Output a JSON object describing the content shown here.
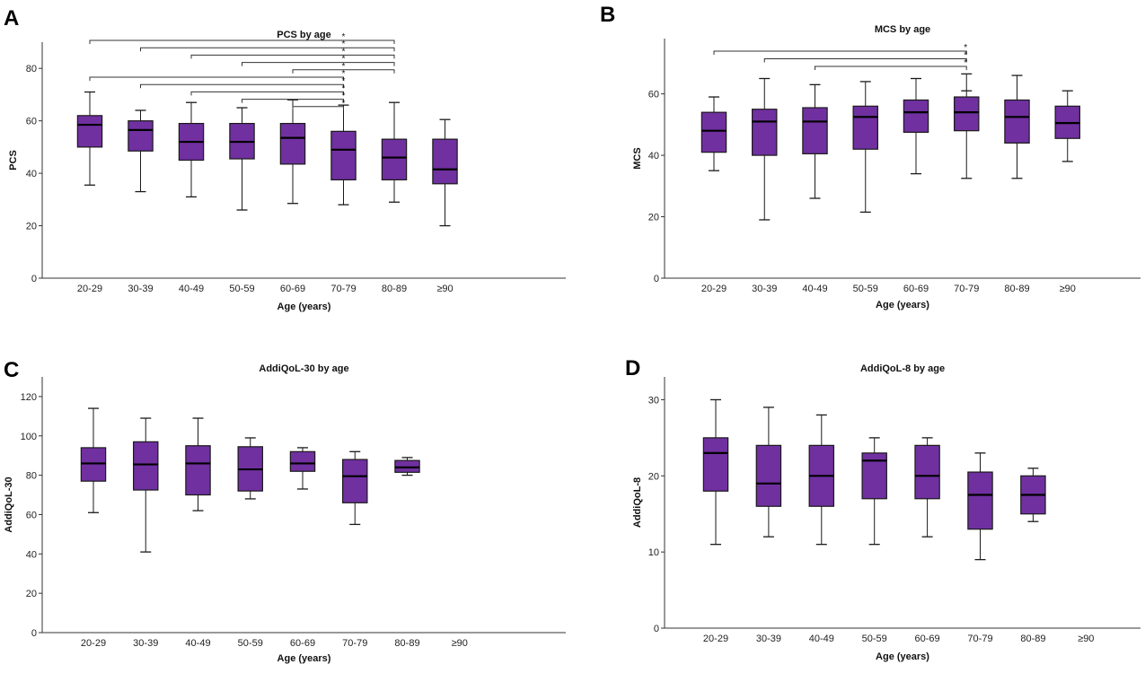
{
  "box_fill": "#7030A0",
  "box_stroke": "#1a1a1a",
  "chart_data": [
    {
      "panel_label": "A",
      "type": "box",
      "title": "PCS by age",
      "xlabel": "Age (years)",
      "ylabel": "PCS",
      "ylim": [
        0,
        90
      ],
      "yticks": [
        0,
        20,
        40,
        60,
        80
      ],
      "categories": [
        "20-29",
        "30-39",
        "40-49",
        "50-59",
        "60-69",
        "70-79",
        "80-89",
        "≥90"
      ],
      "boxes": [
        {
          "min": 35.5,
          "q1": 50,
          "median": 58.5,
          "q3": 62,
          "max": 71
        },
        {
          "min": 33,
          "q1": 48.5,
          "median": 56.5,
          "q3": 60,
          "max": 64
        },
        {
          "min": 31,
          "q1": 45,
          "median": 52,
          "q3": 59,
          "max": 67
        },
        {
          "min": 26,
          "q1": 45.5,
          "median": 52,
          "q3": 59,
          "max": 65
        },
        {
          "min": 28.5,
          "q1": 43.5,
          "median": 53.5,
          "q3": 59,
          "max": 68
        },
        {
          "min": 28,
          "q1": 37.5,
          "median": 49,
          "q3": 56,
          "max": 66
        },
        {
          "min": 29,
          "q1": 37.5,
          "median": 46,
          "q3": 53,
          "max": 67
        },
        {
          "min": 20,
          "q1": 36,
          "median": 41.5,
          "q3": 53,
          "max": 60.5
        }
      ],
      "significance": [
        {
          "from": 0,
          "to": 6,
          "label": "*"
        },
        {
          "from": 1,
          "to": 6,
          "label": "*"
        },
        {
          "from": 2,
          "to": 6,
          "label": "*"
        },
        {
          "from": 3,
          "to": 6,
          "label": "*"
        },
        {
          "from": 4,
          "to": 6,
          "label": "*"
        },
        {
          "from": 0,
          "to": 5,
          "label": "*"
        },
        {
          "from": 1,
          "to": 5,
          "label": "*"
        },
        {
          "from": 2,
          "to": 5,
          "label": "*"
        },
        {
          "from": 3,
          "to": 5,
          "label": "*"
        },
        {
          "from": 4,
          "to": 5,
          "label": "*"
        }
      ]
    },
    {
      "panel_label": "B",
      "type": "box",
      "title": "MCS by age",
      "xlabel": "Age (years)",
      "ylabel": "MCS",
      "ylim": [
        0,
        78
      ],
      "yticks": [
        0,
        20,
        40,
        60
      ],
      "categories": [
        "20-29",
        "30-39",
        "40-49",
        "50-59",
        "60-69",
        "70-79",
        "80-89",
        "≥90"
      ],
      "boxes": [
        {
          "min": 35,
          "q1": 41,
          "median": 48,
          "q3": 54,
          "max": 59
        },
        {
          "min": 19,
          "q1": 40,
          "median": 51,
          "q3": 55,
          "max": 65
        },
        {
          "min": 26,
          "q1": 40.5,
          "median": 51,
          "q3": 55.5,
          "max": 63
        },
        {
          "min": 21.5,
          "q1": 42,
          "median": 52.5,
          "q3": 56,
          "max": 64
        },
        {
          "min": 34,
          "q1": 47.5,
          "median": 54,
          "q3": 58,
          "max": 65
        },
        {
          "min": 32.5,
          "q1": 48,
          "median": 54,
          "q3": 59,
          "max": 66.5,
          "extra": 61
        },
        {
          "min": 32.5,
          "q1": 44,
          "median": 52.5,
          "q3": 58,
          "max": 66
        },
        {
          "min": 38,
          "q1": 45.5,
          "median": 50.5,
          "q3": 56,
          "max": 61
        }
      ],
      "significance": [
        {
          "from": 0,
          "to": 5,
          "label": "*"
        },
        {
          "from": 1,
          "to": 5,
          "label": "*"
        },
        {
          "from": 2,
          "to": 5,
          "label": "*"
        }
      ]
    },
    {
      "panel_label": "C",
      "type": "box",
      "title": "AddiQoL-30 by age",
      "xlabel": "Age (years)",
      "ylabel": "AddiQoL-30",
      "ylim": [
        0,
        130
      ],
      "yticks": [
        0,
        20,
        40,
        60,
        80,
        100,
        120
      ],
      "categories": [
        "20-29",
        "30-39",
        "40-49",
        "50-59",
        "60-69",
        "70-79",
        "80-89",
        "≥90"
      ],
      "boxes": [
        {
          "min": 61,
          "q1": 77,
          "median": 86,
          "q3": 94,
          "max": 114
        },
        {
          "min": 41,
          "q1": 72.5,
          "median": 85.5,
          "q3": 97,
          "max": 109
        },
        {
          "min": 62,
          "q1": 70,
          "median": 86,
          "q3": 95,
          "max": 109
        },
        {
          "min": 68,
          "q1": 72,
          "median": 83,
          "q3": 94.5,
          "max": 99
        },
        {
          "min": 73,
          "q1": 82,
          "median": 86,
          "q3": 92,
          "max": 94
        },
        {
          "min": 55,
          "q1": 66,
          "median": 79.5,
          "q3": 88,
          "max": 92
        },
        {
          "min": 80,
          "q1": 81.5,
          "median": 84,
          "q3": 87.5,
          "max": 89
        },
        null
      ],
      "significance": []
    },
    {
      "panel_label": "D",
      "type": "box",
      "title": "AddiQoL-8 by age",
      "xlabel": "Age (years)",
      "ylabel": "AddiQoL-8",
      "ylim": [
        0,
        33
      ],
      "yticks": [
        0,
        10,
        20,
        30
      ],
      "categories": [
        "20-29",
        "30-39",
        "40-49",
        "50-59",
        "60-69",
        "70-79",
        "80-89",
        "≥90"
      ],
      "boxes": [
        {
          "min": 11,
          "q1": 18,
          "median": 23,
          "q3": 25,
          "max": 30
        },
        {
          "min": 12,
          "q1": 16,
          "median": 19,
          "q3": 24,
          "max": 29
        },
        {
          "min": 11,
          "q1": 16,
          "median": 20,
          "q3": 24,
          "max": 28
        },
        {
          "min": 11,
          "q1": 17,
          "median": 22,
          "q3": 23,
          "max": 25
        },
        {
          "min": 12,
          "q1": 17,
          "median": 20,
          "q3": 24,
          "max": 25
        },
        {
          "min": 9,
          "q1": 13,
          "median": 17.5,
          "q3": 20.5,
          "max": 23
        },
        {
          "min": 14,
          "q1": 15,
          "median": 17.5,
          "q3": 20,
          "max": 21
        },
        null
      ],
      "significance": []
    }
  ]
}
